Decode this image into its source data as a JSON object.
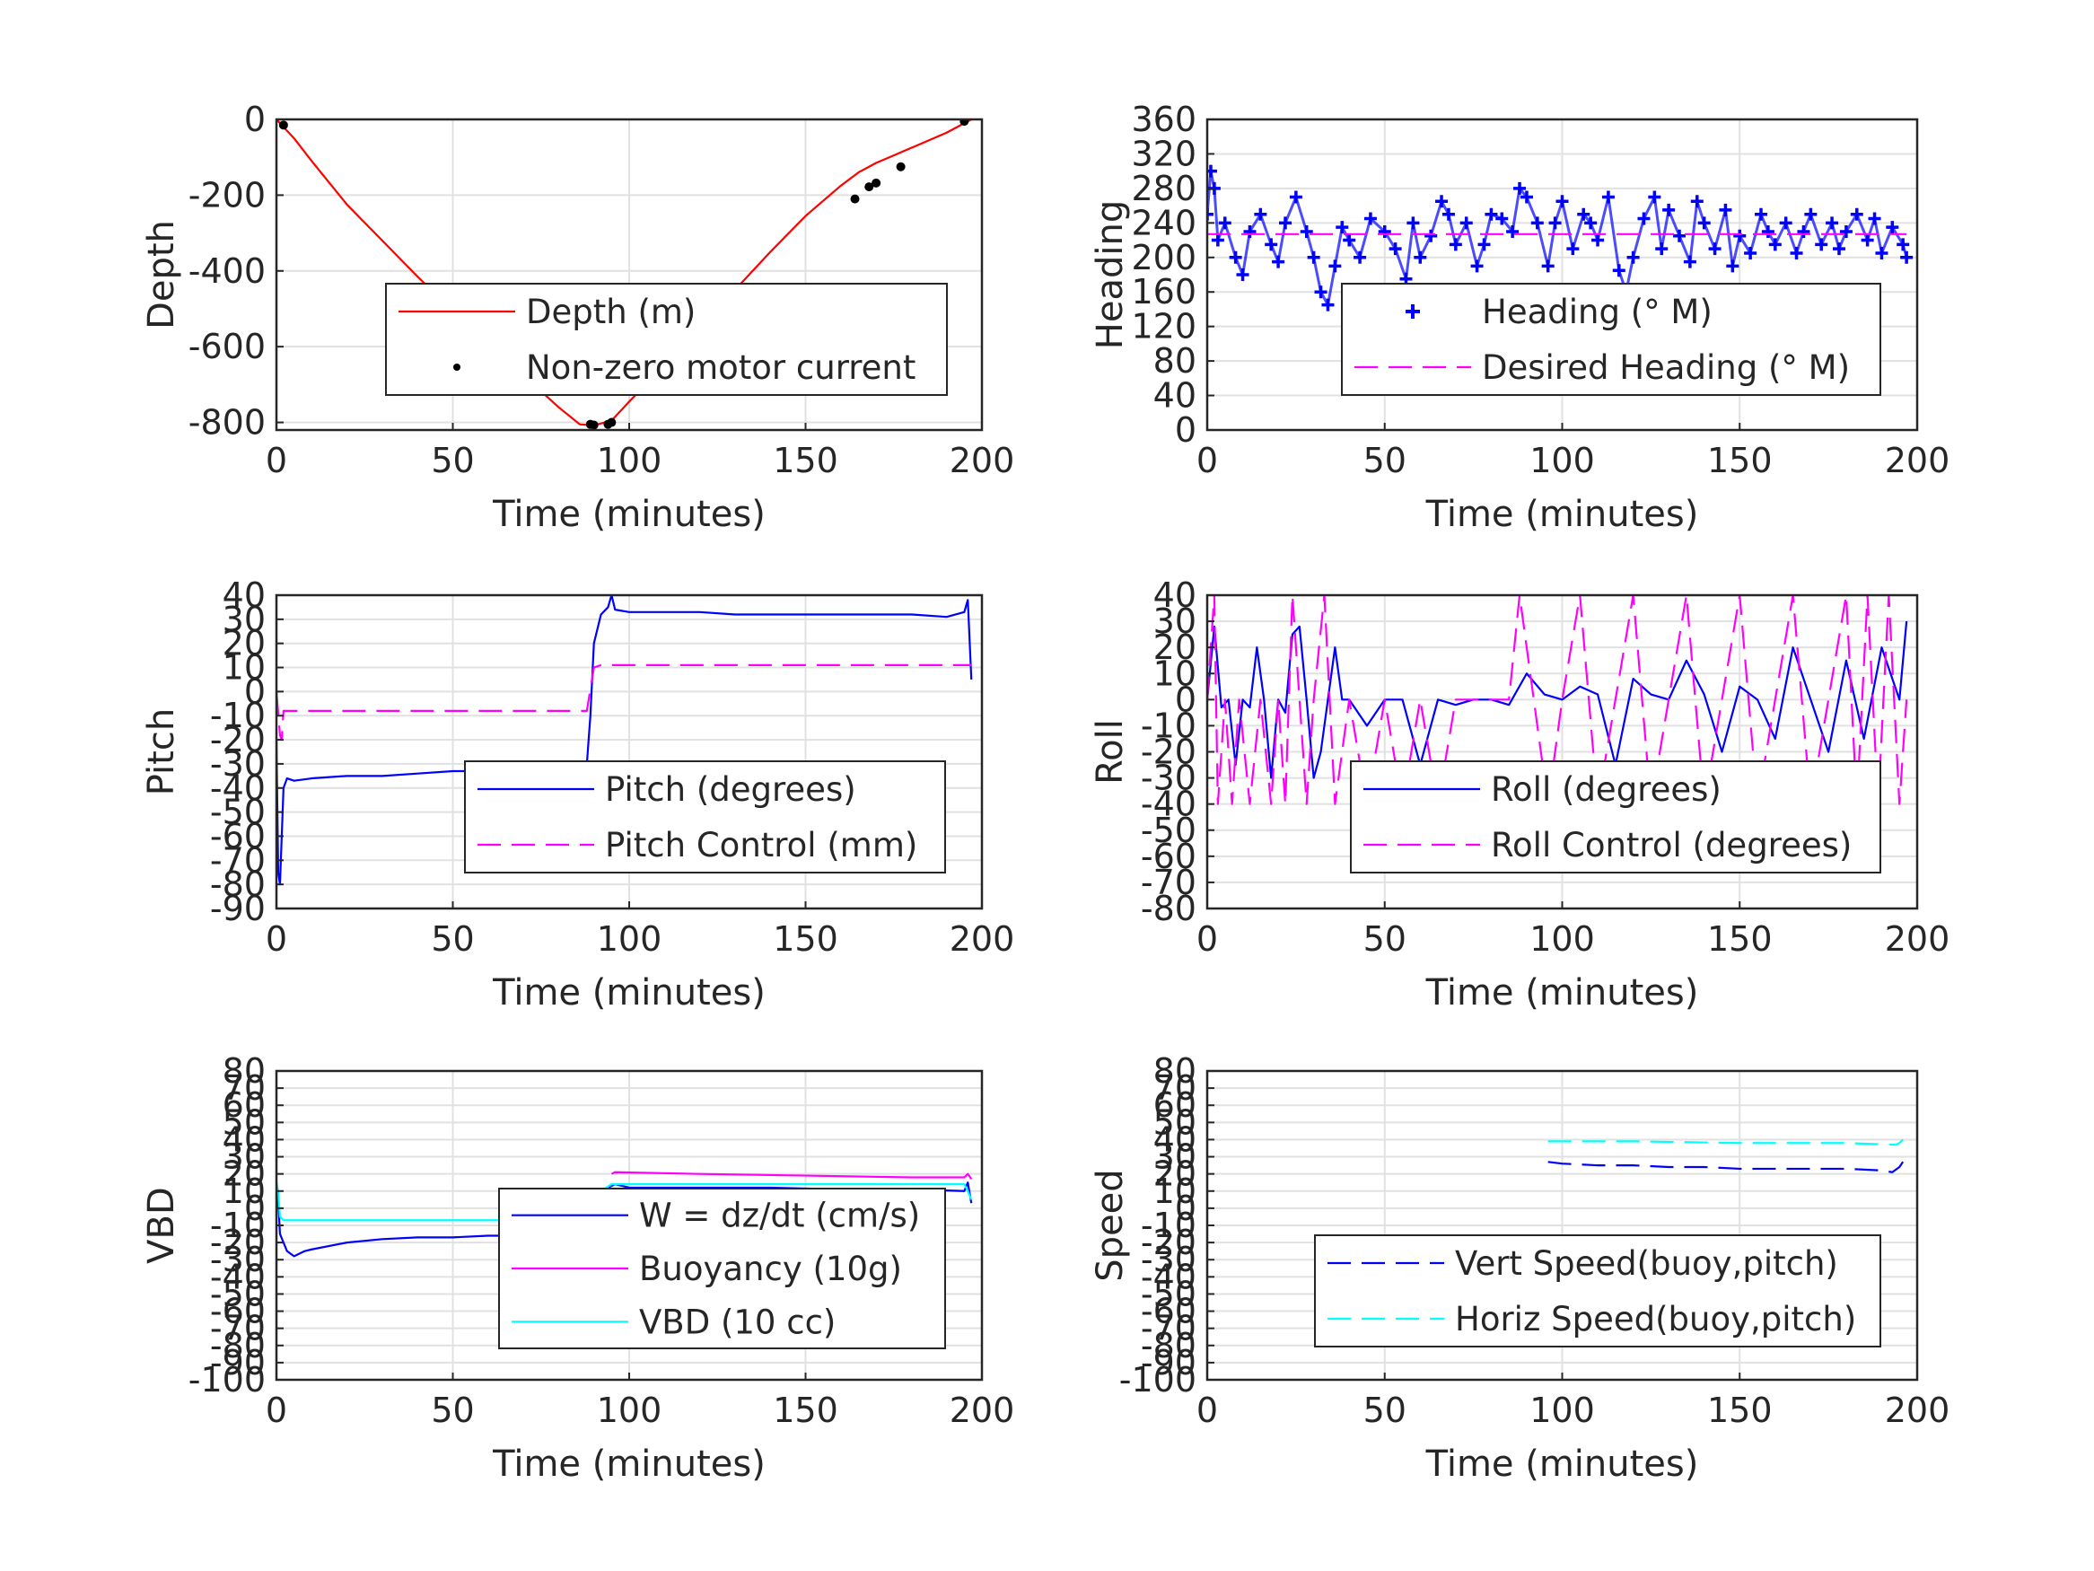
{
  "chart_data": [
    {
      "id": "depth",
      "type": "line",
      "xlabel": "Time (minutes)",
      "ylabel": "Depth",
      "xlim": [
        0,
        200
      ],
      "ylim": [
        -820,
        0
      ],
      "xticks": [
        0,
        50,
        100,
        150,
        200
      ],
      "yticks": [
        0,
        -200,
        -400,
        -600,
        -800
      ],
      "grid": true,
      "legend_position": "center-right",
      "series": [
        {
          "name": "Depth (m)",
          "color": "#ff0000",
          "style": "solid",
          "x": [
            0,
            5,
            10,
            20,
            30,
            40,
            50,
            60,
            70,
            80,
            86,
            90,
            95,
            100,
            110,
            120,
            130,
            140,
            150,
            160,
            165,
            170,
            175,
            180,
            185,
            190,
            195,
            197
          ],
          "y": [
            0,
            -50,
            -110,
            -225,
            -320,
            -415,
            -505,
            -590,
            -675,
            -760,
            -805,
            -808,
            -795,
            -745,
            -650,
            -550,
            -450,
            -350,
            -255,
            -175,
            -140,
            -115,
            -95,
            -75,
            -55,
            -35,
            -10,
            0
          ]
        },
        {
          "name": "Non-zero motor current",
          "color": "#000000",
          "style": "dots",
          "x": [
            2,
            89,
            90,
            94,
            95,
            164,
            168,
            170,
            177,
            195
          ],
          "y": [
            -15,
            -805,
            -807,
            -805,
            -800,
            -210,
            -178,
            -168,
            -125,
            -5
          ]
        }
      ]
    },
    {
      "id": "heading",
      "type": "scatter",
      "xlabel": "Time (minutes)",
      "ylabel": "Heading",
      "xlim": [
        0,
        200
      ],
      "ylim": [
        0,
        360
      ],
      "xticks": [
        0,
        50,
        100,
        150,
        200
      ],
      "yticks": [
        0,
        40,
        80,
        120,
        160,
        200,
        240,
        280,
        320,
        360
      ],
      "grid": true,
      "legend_position": "bottom-right",
      "series": [
        {
          "name": "Heading (° M)",
          "color": "#0000ff",
          "style": "plus",
          "x": [
            0,
            1,
            2,
            3,
            5,
            8,
            10,
            12,
            15,
            18,
            20,
            22,
            25,
            28,
            30,
            32,
            34,
            36,
            38,
            40,
            43,
            46,
            50,
            53,
            56,
            58,
            60,
            63,
            66,
            68,
            70,
            73,
            76,
            78,
            80,
            83,
            86,
            88,
            90,
            93,
            96,
            98,
            100,
            103,
            106,
            108,
            110,
            113,
            116,
            118,
            120,
            123,
            126,
            128,
            130,
            133,
            136,
            138,
            140,
            143,
            146,
            148,
            150,
            153,
            156,
            158,
            160,
            163,
            166,
            168,
            170,
            173,
            176,
            178,
            180,
            183,
            186,
            188,
            190,
            193,
            196,
            197
          ],
          "y": [
            250,
            300,
            280,
            220,
            240,
            200,
            180,
            230,
            250,
            215,
            195,
            240,
            270,
            230,
            200,
            160,
            145,
            190,
            235,
            220,
            200,
            245,
            230,
            210,
            175,
            240,
            200,
            225,
            265,
            250,
            215,
            240,
            190,
            215,
            250,
            245,
            230,
            280,
            270,
            240,
            190,
            240,
            265,
            210,
            250,
            240,
            220,
            270,
            185,
            160,
            200,
            245,
            270,
            210,
            255,
            225,
            195,
            265,
            240,
            210,
            255,
            190,
            225,
            205,
            250,
            230,
            215,
            240,
            205,
            230,
            250,
            215,
            240,
            210,
            230,
            250,
            220,
            245,
            205,
            235,
            215,
            200
          ]
        },
        {
          "name": "Desired Heading (° M)",
          "color": "#ff00ff",
          "style": "dashed",
          "x": [
            0,
            197
          ],
          "y": [
            227,
            227
          ]
        }
      ]
    },
    {
      "id": "pitch",
      "type": "line",
      "xlabel": "Time (minutes)",
      "ylabel": "Pitch",
      "xlim": [
        0,
        200
      ],
      "ylim": [
        -90,
        40
      ],
      "xticks": [
        0,
        50,
        100,
        150,
        200
      ],
      "yticks": [
        40,
        30,
        20,
        10,
        0,
        -10,
        -20,
        -30,
        -40,
        -50,
        -60,
        -70,
        -80,
        -90
      ],
      "grid": true,
      "legend_position": "bottom-right",
      "series": [
        {
          "name": "Pitch (degrees)",
          "color": "#0000ff",
          "style": "solid",
          "x": [
            0,
            0.5,
            1,
            1.5,
            2,
            3,
            5,
            10,
            20,
            30,
            40,
            50,
            60,
            70,
            80,
            86,
            88,
            89,
            90,
            92,
            94,
            95,
            96,
            100,
            110,
            120,
            130,
            140,
            150,
            160,
            170,
            180,
            190,
            195,
            196,
            197
          ],
          "y": [
            -20,
            -75,
            -80,
            -60,
            -40,
            -36,
            -37,
            -36,
            -35,
            -35,
            -34,
            -33,
            -33,
            -33,
            -33,
            -33,
            -30,
            -10,
            20,
            32,
            35,
            40,
            34,
            33,
            33,
            33,
            32,
            32,
            32,
            32,
            32,
            32,
            31,
            33,
            38,
            5
          ]
        },
        {
          "name": "Pitch Control (mm)",
          "color": "#ff00ff",
          "style": "dashed",
          "x": [
            0,
            1,
            1.5,
            2,
            5,
            10,
            30,
            50,
            70,
            85,
            88,
            90,
            92,
            95,
            120,
            150,
            180,
            197
          ],
          "y": [
            0,
            -18,
            -20,
            -8,
            -8,
            -8,
            -8,
            -8,
            -8,
            -8,
            -8,
            10,
            11,
            11,
            11,
            11,
            11,
            11
          ]
        }
      ]
    },
    {
      "id": "roll",
      "type": "line",
      "xlabel": "Time (minutes)",
      "ylabel": "Roll",
      "xlim": [
        0,
        200
      ],
      "ylim": [
        -80,
        40
      ],
      "xticks": [
        0,
        50,
        100,
        150,
        200
      ],
      "yticks": [
        40,
        30,
        20,
        10,
        0,
        -10,
        -20,
        -30,
        -40,
        -50,
        -60,
        -70,
        -80
      ],
      "grid": true,
      "legend_position": "bottom-right",
      "series": [
        {
          "name": "Roll (degrees)",
          "color": "#0000ff",
          "style": "solid",
          "x": [
            0,
            2,
            4,
            6,
            8,
            10,
            12,
            14,
            16,
            18,
            20,
            22,
            24,
            26,
            28,
            30,
            32,
            34,
            36,
            38,
            40,
            45,
            50,
            55,
            60,
            65,
            70,
            75,
            80,
            85,
            90,
            95,
            100,
            105,
            110,
            115,
            120,
            125,
            130,
            135,
            140,
            145,
            150,
            155,
            160,
            165,
            170,
            175,
            180,
            185,
            190,
            195,
            197
          ],
          "y": [
            0,
            28,
            -3,
            0,
            -25,
            0,
            -3,
            20,
            0,
            -30,
            0,
            -5,
            25,
            28,
            0,
            -30,
            -20,
            0,
            20,
            0,
            0,
            -10,
            0,
            0,
            -25,
            0,
            -2,
            0,
            0,
            -2,
            10,
            2,
            0,
            5,
            2,
            -25,
            8,
            2,
            0,
            15,
            2,
            -20,
            5,
            0,
            -15,
            20,
            0,
            -20,
            15,
            -15,
            20,
            0,
            30
          ]
        },
        {
          "name": "Roll Control (degrees)",
          "color": "#ff00ff",
          "style": "dashed",
          "x": [
            0,
            2,
            3,
            5,
            7,
            9,
            12,
            15,
            18,
            20,
            22,
            24,
            26,
            28,
            30,
            33,
            36,
            40,
            45,
            50,
            55,
            60,
            65,
            70,
            75,
            80,
            85,
            88,
            92,
            96,
            100,
            105,
            110,
            115,
            120,
            125,
            130,
            135,
            140,
            145,
            150,
            155,
            160,
            165,
            170,
            175,
            180,
            183,
            186,
            189,
            192,
            195,
            197
          ],
          "y": [
            0,
            40,
            -40,
            0,
            -40,
            0,
            -40,
            0,
            -40,
            0,
            -40,
            40,
            0,
            -40,
            0,
            40,
            -40,
            0,
            -40,
            0,
            -40,
            0,
            -40,
            0,
            0,
            0,
            0,
            40,
            0,
            -40,
            0,
            40,
            -40,
            0,
            40,
            -40,
            0,
            40,
            -40,
            0,
            40,
            -40,
            0,
            40,
            -40,
            0,
            40,
            -40,
            40,
            -40,
            40,
            -40,
            0
          ]
        }
      ]
    },
    {
      "id": "vbd",
      "type": "line",
      "xlabel": "Time (minutes)",
      "ylabel": "VBD",
      "xlim": [
        0,
        200
      ],
      "ylim": [
        -100,
        80
      ],
      "xticks": [
        0,
        50,
        100,
        150,
        200
      ],
      "yticks": [
        80,
        70,
        60,
        50,
        40,
        30,
        20,
        10,
        0,
        -10,
        -20,
        -30,
        -40,
        -50,
        -60,
        -70,
        -80,
        -90,
        -100
      ],
      "ytick_labels": [
        "80",
        "70",
        "60",
        "50",
        "40",
        "30",
        "20",
        "10",
        "0",
        "-10",
        "-20",
        "-30",
        "-40",
        "-50",
        "-60",
        "-70",
        "-80",
        "-90",
        "-100"
      ],
      "grid": true,
      "legend_position": "center-right",
      "series": [
        {
          "name": "W = dz/dt (cm/s)",
          "color": "#0000ff",
          "style": "solid",
          "x": [
            0,
            0.5,
            1,
            2,
            3,
            5,
            8,
            10,
            20,
            30,
            40,
            50,
            60,
            70,
            80,
            85,
            86,
            88,
            90,
            92,
            94,
            96,
            100,
            120,
            140,
            160,
            180,
            195,
            196,
            197
          ],
          "y": [
            15,
            5,
            -15,
            -20,
            -25,
            -28,
            -25,
            -24,
            -20,
            -18,
            -17,
            -17,
            -16,
            -16,
            -16,
            -16,
            -5,
            -2,
            0,
            5,
            12,
            14,
            12,
            12,
            12,
            11,
            11,
            10,
            15,
            3
          ]
        },
        {
          "name": "Buoyancy (10g)",
          "color": "#ff00ff",
          "style": "solid",
          "x": [
            95,
            96,
            120,
            150,
            180,
            195,
            196,
            197
          ],
          "y": [
            20,
            21,
            20,
            19,
            18,
            18,
            20,
            17
          ]
        },
        {
          "name": "VBD (10 cc)",
          "color": "#00ffff",
          "style": "solid",
          "x": [
            0,
            0.5,
            1,
            2,
            5,
            20,
            40,
            60,
            80,
            88,
            90,
            95,
            100,
            150,
            195,
            196,
            197
          ],
          "y": [
            15,
            10,
            -5,
            -7,
            -7,
            -7,
            -7,
            -7,
            -7,
            -7,
            7,
            14,
            14,
            14,
            14,
            10,
            5
          ]
        }
      ]
    },
    {
      "id": "speed",
      "type": "line",
      "xlabel": "Time (minutes)",
      "ylabel": "Speed",
      "xlim": [
        0,
        200
      ],
      "ylim": [
        -100,
        80
      ],
      "xticks": [
        0,
        50,
        100,
        150,
        200
      ],
      "yticks": [
        80,
        70,
        60,
        50,
        40,
        30,
        20,
        10,
        0,
        -10,
        -20,
        -30,
        -40,
        -50,
        -60,
        -70,
        -80,
        -90,
        -100
      ],
      "ytick_labels": [
        "80",
        "70",
        "60",
        "50",
        "40",
        "30",
        "20",
        "10",
        "0",
        "-10",
        "-20",
        "-30",
        "-40",
        "-50",
        "-60",
        "-70",
        "-80",
        "-90",
        "-100"
      ],
      "grid": true,
      "legend_position": "bottom-right",
      "series": [
        {
          "name": "Vert Speed(buoy,pitch)",
          "color": "#0000ff",
          "style": "dashed",
          "x": [
            96,
            100,
            110,
            120,
            130,
            140,
            150,
            160,
            170,
            180,
            190,
            193,
            195,
            196
          ],
          "y": [
            27,
            26,
            25,
            25,
            24,
            24,
            23,
            23,
            23,
            23,
            22,
            21,
            24,
            27
          ]
        },
        {
          "name": "Horiz Speed(buoy,pitch)",
          "color": "#00ffff",
          "style": "dashed",
          "x": [
            96,
            120,
            150,
            180,
            194,
            195,
            196
          ],
          "y": [
            39,
            39,
            38,
            38,
            37,
            38,
            40
          ]
        }
      ]
    }
  ]
}
